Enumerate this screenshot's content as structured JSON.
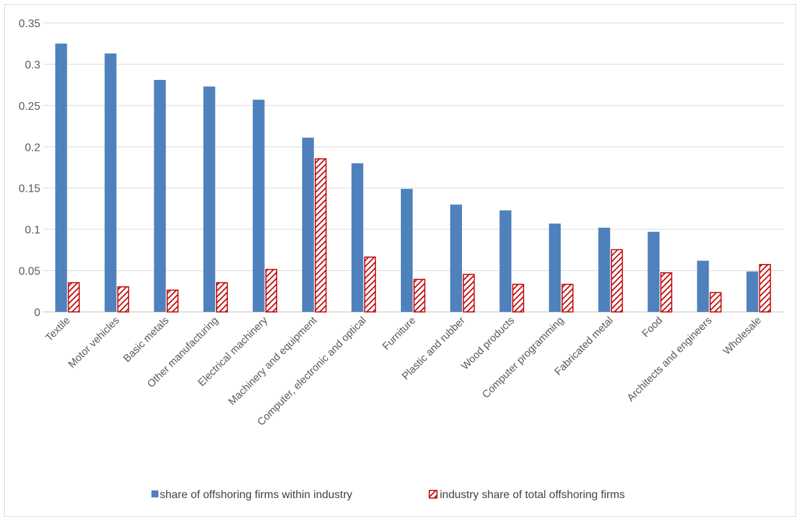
{
  "chart_data": {
    "type": "bar",
    "categories": [
      "Textile",
      "Motor vehicles",
      "Basic metals",
      "Other manufacturing",
      "Electrical machinery",
      "Machinery and equipment",
      "Computer, electronic and optical",
      "Furniture",
      "Plastic and rubber",
      "Wood products",
      "Computer programming",
      "Fabricated metal",
      "Food",
      "Architects and engineers",
      "Wholesale"
    ],
    "series": [
      {
        "name": "share of offshoring firms within industry",
        "color": "#4f81bd",
        "pattern": "solid",
        "values": [
          0.325,
          0.313,
          0.281,
          0.273,
          0.257,
          0.211,
          0.18,
          0.149,
          0.13,
          0.123,
          0.107,
          0.102,
          0.097,
          0.062,
          0.049
        ]
      },
      {
        "name": "industry share of total offshoring firms",
        "color": "#c00000",
        "pattern": "diagonal-hatch",
        "values": [
          0.036,
          0.031,
          0.027,
          0.036,
          0.052,
          0.186,
          0.067,
          0.04,
          0.046,
          0.034,
          0.034,
          0.076,
          0.048,
          0.024,
          0.058
        ]
      }
    ],
    "title": "",
    "xlabel": "",
    "ylabel": "",
    "ylim": [
      0,
      0.35
    ],
    "yticks": [
      "0",
      "0.05",
      "0.1",
      "0.15",
      "0.2",
      "0.25",
      "0.3",
      "0.35"
    ],
    "grid": true,
    "legend_position": "bottom"
  }
}
